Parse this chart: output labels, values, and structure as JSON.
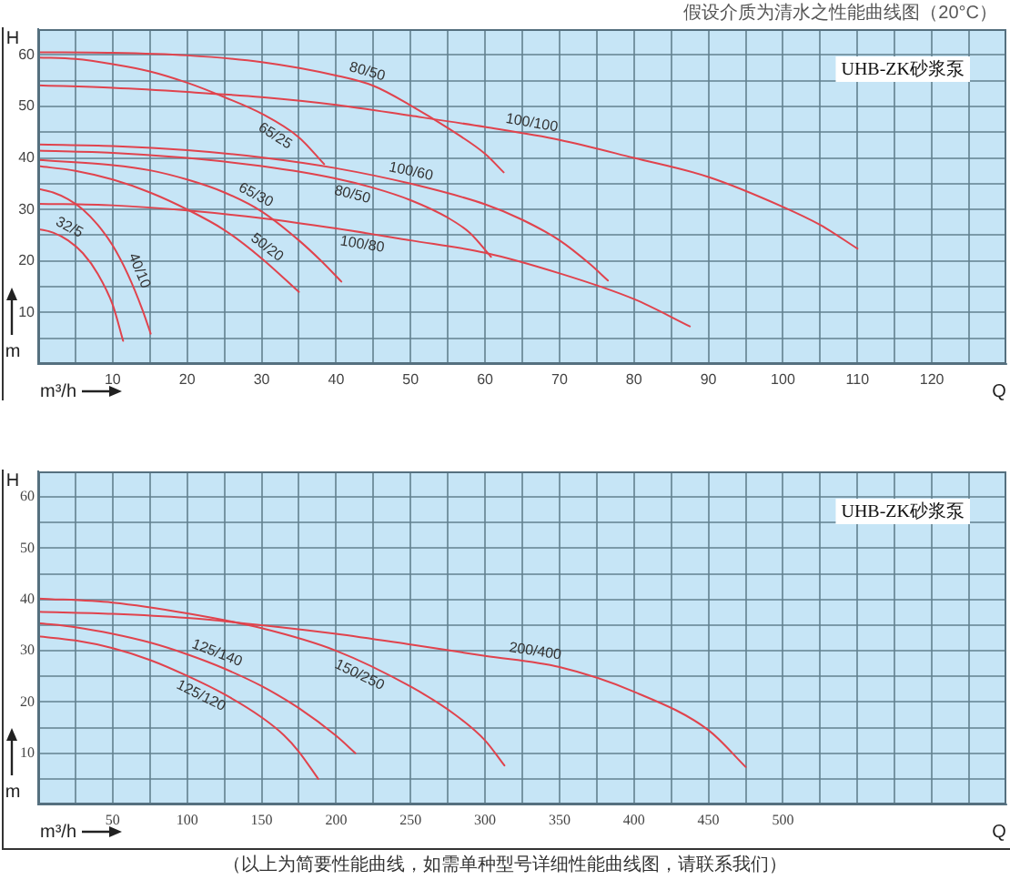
{
  "chart_data": [
    {
      "type": "line",
      "title": "UHB-ZK砂浆泵",
      "subtitle": "假设介质为清水之性能曲线图（20°C）",
      "xlabel": "Q",
      "ylabel": "H",
      "annotations": [
        "m",
        "m³/h"
      ],
      "xlim": [
        0,
        130
      ],
      "ylim": [
        0,
        65
      ],
      "xticks": [
        {
          "value": 5,
          "label": null
        },
        10,
        {
          "value": 15,
          "label": null
        },
        20,
        {
          "value": 25,
          "label": null
        },
        30,
        {
          "value": 35,
          "label": null
        },
        40,
        {
          "value": 45,
          "label": null
        },
        50,
        {
          "value": 55,
          "label": null
        },
        60,
        {
          "value": 65,
          "label": null
        },
        70,
        {
          "value": 75,
          "label": null
        },
        80,
        {
          "value": 85,
          "label": null
        },
        90,
        {
          "value": 95,
          "label": null
        },
        100,
        {
          "value": 105,
          "label": null
        },
        110,
        {
          "value": 115,
          "label": null
        },
        120,
        {
          "value": 125,
          "label": null
        }
      ],
      "yticks": [
        {
          "value": 5,
          "label": null
        },
        10,
        {
          "value": 15,
          "label": null
        },
        20,
        {
          "value": 25,
          "label": null
        },
        30,
        {
          "value": 35,
          "label": null
        },
        40,
        {
          "value": 45,
          "label": null
        },
        50,
        {
          "value": 55,
          "label": null
        },
        60
      ],
      "grid": true,
      "legend": false,
      "marker": "none",
      "line_style": "solid",
      "series": [
        {
          "name": "80/50",
          "color": "#e0434d",
          "x": [
            0,
            10,
            20,
            30,
            40,
            45,
            50,
            55,
            60,
            62.5
          ],
          "values": [
            60.5,
            60.4,
            59.9,
            58.6,
            56,
            54,
            50.2,
            45.8,
            40.8,
            37.2
          ]
        },
        {
          "name": "65/25",
          "color": "#e0434d",
          "x": [
            0,
            5,
            10,
            15,
            20,
            25,
            30,
            35,
            38.4
          ],
          "values": [
            59.5,
            59.2,
            58.2,
            56.8,
            54.6,
            51.8,
            48.6,
            44,
            38.8
          ]
        },
        {
          "name": "100/100",
          "color": "#e0434d",
          "x": [
            0,
            10,
            20,
            30,
            40,
            50,
            60,
            70,
            80,
            90,
            100,
            105,
            110
          ],
          "values": [
            54.1,
            53.6,
            52.8,
            51.8,
            50.3,
            48.2,
            46,
            43.5,
            40,
            36.3,
            30.5,
            27,
            22.4
          ]
        },
        {
          "name": "100/60",
          "color": "#e0434d",
          "x": [
            0,
            10,
            20,
            30,
            40,
            50,
            60,
            65,
            70,
            74,
            76.5
          ],
          "values": [
            42.6,
            42.3,
            41.5,
            40.1,
            38,
            35,
            31,
            28,
            24,
            19.5,
            16.2
          ]
        },
        {
          "name": "80/50",
          "color": "#e0434d",
          "x": [
            0,
            10,
            20,
            30,
            40,
            45,
            50,
            55,
            58,
            60.8
          ],
          "values": [
            41.4,
            41,
            40,
            38.4,
            36,
            34.2,
            31.8,
            28.4,
            25.4,
            20.8
          ]
        },
        {
          "name": "65/30",
          "color": "#e0434d",
          "x": [
            0,
            10,
            15,
            20,
            25,
            30,
            35,
            38,
            40.7
          ],
          "values": [
            39.6,
            38.6,
            37.6,
            35.8,
            33.3,
            29.6,
            24,
            20,
            16
          ]
        },
        {
          "name": "50/20",
          "color": "#e0434d",
          "x": [
            0,
            5,
            10,
            15,
            20,
            25,
            30,
            35
          ],
          "values": [
            38.4,
            37.5,
            35.8,
            33.3,
            30,
            26,
            20.5,
            14
          ]
        },
        {
          "name": "40/10",
          "color": "#e0434d",
          "x": [
            0,
            2,
            4,
            6,
            8,
            10,
            12,
            14,
            15.1
          ],
          "values": [
            34,
            33.3,
            32,
            30,
            27,
            23,
            17.5,
            10.5,
            5.9
          ]
        },
        {
          "name": "32/5",
          "color": "#e0434d",
          "x": [
            0,
            2,
            4,
            6,
            8,
            10,
            11.4
          ],
          "values": [
            26.2,
            25.5,
            24,
            21.5,
            17.5,
            11.5,
            4.5
          ]
        },
        {
          "name": "100/80",
          "color": "#e0434d",
          "x": [
            0,
            10,
            20,
            30,
            40,
            50,
            60,
            70,
            80,
            87.5
          ],
          "values": [
            31.1,
            30.8,
            29.8,
            28.3,
            26.3,
            24,
            21.6,
            17.6,
            12.6,
            7.3
          ]
        }
      ]
    },
    {
      "type": "line",
      "title": "UHB-ZK砂浆泵",
      "xlabel": "Q",
      "ylabel": "H",
      "annotations": [
        "m",
        "m³/h",
        "（以上为简要性能曲线，如需单种型号详细性能曲线图，请联系我们）"
      ],
      "xlim": [
        0,
        650
      ],
      "ylim": [
        0,
        65
      ],
      "xticks": [
        {
          "value": 25,
          "label": null
        },
        50,
        {
          "value": 75,
          "label": null
        },
        100,
        {
          "value": 125,
          "label": null
        },
        150,
        {
          "value": 175,
          "label": null
        },
        200,
        {
          "value": 225,
          "label": null
        },
        250,
        {
          "value": 275,
          "label": null
        },
        300,
        {
          "value": 325,
          "label": null
        },
        350,
        {
          "value": 375,
          "label": null
        },
        400,
        {
          "value": 425,
          "label": null
        },
        450,
        {
          "value": 475,
          "label": null
        },
        500,
        {
          "value": 525,
          "label": null
        },
        {
          "value": 550,
          "label": null
        },
        {
          "value": 575,
          "label": null
        },
        {
          "value": 600,
          "label": null
        },
        {
          "value": 625,
          "label": null
        }
      ],
      "yticks": [
        {
          "value": 5,
          "label": null
        },
        10,
        {
          "value": 15,
          "label": null
        },
        20,
        {
          "value": 25,
          "label": null
        },
        30,
        {
          "value": 35,
          "label": null
        },
        40,
        {
          "value": 45,
          "label": null
        },
        50,
        {
          "value": 55,
          "label": null
        },
        60
      ],
      "grid": true,
      "legend": false,
      "marker": "none",
      "line_style": "solid",
      "series": [
        {
          "name": "200/400",
          "color": "#e0434d",
          "x": [
            0,
            50,
            100,
            150,
            200,
            250,
            300,
            350,
            400,
            450,
            475
          ],
          "values": [
            37.6,
            37.2,
            36.4,
            35,
            33.3,
            31.2,
            29,
            26.8,
            22,
            14.5,
            7.3
          ]
        },
        {
          "name": "150/250",
          "color": "#e0434d",
          "x": [
            0,
            50,
            100,
            150,
            200,
            250,
            280,
            300,
            313
          ],
          "values": [
            40.2,
            39.4,
            37.3,
            34.4,
            30,
            23,
            17.5,
            12.5,
            7.6
          ]
        },
        {
          "name": "125/140",
          "color": "#e0434d",
          "x": [
            0,
            25,
            50,
            75,
            100,
            125,
            150,
            175,
            200,
            213
          ],
          "values": [
            35.4,
            34.6,
            33.3,
            31.6,
            29.3,
            26.5,
            23.1,
            18.8,
            13.4,
            10
          ]
        },
        {
          "name": "125/120",
          "color": "#e0434d",
          "x": [
            0,
            25,
            50,
            75,
            100,
            125,
            150,
            165,
            175,
            188
          ],
          "values": [
            32.8,
            32,
            30.5,
            28.2,
            25.1,
            21.5,
            17,
            13.5,
            10.3,
            5
          ]
        }
      ]
    }
  ]
}
